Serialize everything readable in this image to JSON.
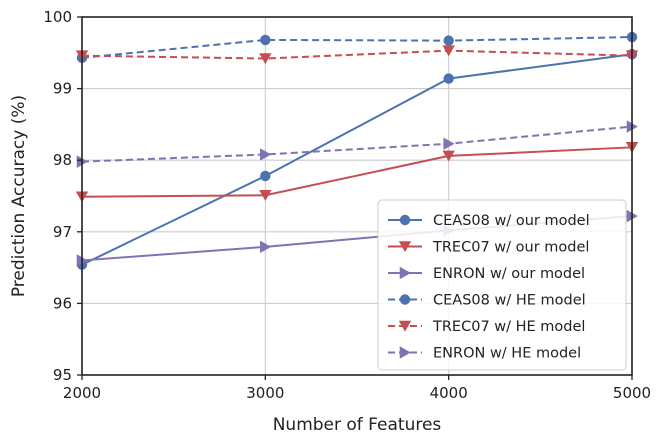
{
  "chart_data": {
    "type": "line",
    "title": "",
    "xlabel": "Number of Features",
    "ylabel": "Prediction Accuracy (%)",
    "x": [
      2000,
      3000,
      4000,
      5000
    ],
    "xlim": [
      2000,
      5000
    ],
    "ylim": [
      95,
      100
    ],
    "xticks": [
      "2000",
      "3000",
      "4000",
      "5000"
    ],
    "yticks": [
      "95",
      "96",
      "97",
      "98",
      "99",
      "100"
    ],
    "grid": true,
    "legend_position": "bottom-right",
    "series": [
      {
        "name": "CEAS08 w/ our model",
        "values": [
          96.54,
          97.78,
          99.14,
          99.48
        ],
        "color": "#4c72b0",
        "marker": "circle",
        "dash": "solid"
      },
      {
        "name": "TREC07 w/ our model",
        "values": [
          97.49,
          97.51,
          98.06,
          98.18
        ],
        "color": "#c44e52",
        "marker": "triangle-down",
        "dash": "solid"
      },
      {
        "name": "ENRON w/ our model",
        "values": [
          96.6,
          96.79,
          97.02,
          97.22
        ],
        "color": "#8172b2",
        "marker": "triangle-right",
        "dash": "solid"
      },
      {
        "name": "CEAS08 w/ HE model",
        "values": [
          99.43,
          99.68,
          99.67,
          99.72
        ],
        "color": "#4c72b0",
        "marker": "circle",
        "dash": "dashed"
      },
      {
        "name": "TREC07 w/ HE model",
        "values": [
          99.46,
          99.42,
          99.53,
          99.46
        ],
        "color": "#c44e52",
        "marker": "triangle-down",
        "dash": "dashed"
      },
      {
        "name": "ENRON w/ HE model",
        "values": [
          97.98,
          98.08,
          98.23,
          98.47
        ],
        "color": "#8172b2",
        "marker": "triangle-right",
        "dash": "dashed"
      }
    ]
  }
}
